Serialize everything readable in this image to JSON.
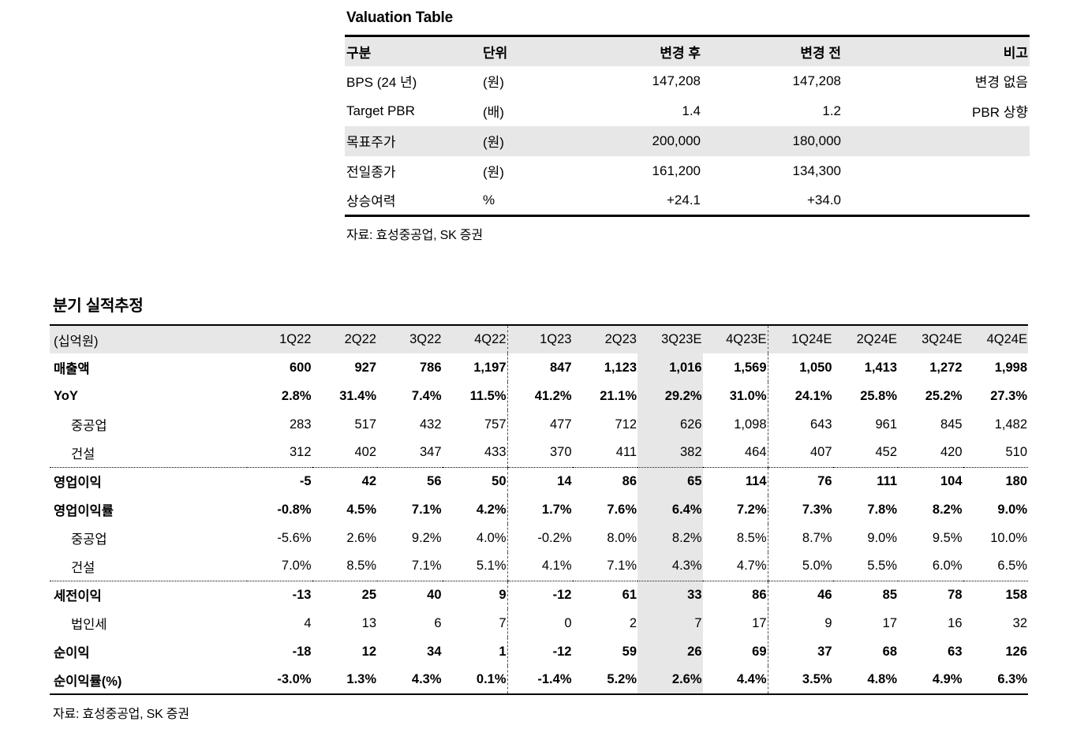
{
  "valuation_table": {
    "title": "Valuation Table",
    "headers": [
      "구분",
      "단위",
      "변경 후",
      "변경 전",
      "비고"
    ],
    "rows": [
      {
        "label": "BPS (24 년)",
        "unit": "(원)",
        "after": "147,208",
        "before": "147,208",
        "note": "변경 없음",
        "highlight": false
      },
      {
        "label": "Target PBR",
        "unit": "(배)",
        "after": "1.4",
        "before": "1.2",
        "note": "PBR 상향",
        "highlight": false
      },
      {
        "label": "목표주가",
        "unit": "(원)",
        "after": "200,000",
        "before": "180,000",
        "note": "",
        "highlight": true
      },
      {
        "label": "전일종가",
        "unit": "(원)",
        "after": "161,200",
        "before": "134,300",
        "note": "",
        "highlight": false
      },
      {
        "label": "상승여력",
        "unit": "%",
        "after": "+24.1",
        "before": "+34.0",
        "note": "",
        "highlight": false
      }
    ],
    "source": "자료: 효성중공업, SK 증권"
  },
  "quarterly_table": {
    "title": "분기 실적추정",
    "unit_label": "(십억원)",
    "columns": [
      "1Q22",
      "2Q22",
      "3Q22",
      "4Q22",
      "1Q23",
      "2Q23",
      "3Q23E",
      "4Q23E",
      "1Q24E",
      "2Q24E",
      "3Q24E",
      "4Q24E"
    ],
    "highlight_column": "3Q23E",
    "rows": [
      {
        "label": "매출액",
        "bold": true,
        "indent": false,
        "divider_top": false,
        "values": [
          "600",
          "927",
          "786",
          "1,197",
          "847",
          "1,123",
          "1,016",
          "1,569",
          "1,050",
          "1,413",
          "1,272",
          "1,998"
        ]
      },
      {
        "label": "YoY",
        "bold": true,
        "indent": false,
        "divider_top": false,
        "values": [
          "2.8%",
          "31.4%",
          "7.4%",
          "11.5%",
          "41.2%",
          "21.1%",
          "29.2%",
          "31.0%",
          "24.1%",
          "25.8%",
          "25.2%",
          "27.3%"
        ]
      },
      {
        "label": "중공업",
        "bold": false,
        "indent": true,
        "divider_top": false,
        "values": [
          "283",
          "517",
          "432",
          "757",
          "477",
          "712",
          "626",
          "1,098",
          "643",
          "961",
          "845",
          "1,482"
        ]
      },
      {
        "label": "건설",
        "bold": false,
        "indent": true,
        "divider_top": false,
        "values": [
          "312",
          "402",
          "347",
          "433",
          "370",
          "411",
          "382",
          "464",
          "407",
          "452",
          "420",
          "510"
        ]
      },
      {
        "label": "영업이익",
        "bold": true,
        "indent": false,
        "divider_top": true,
        "values": [
          "-5",
          "42",
          "56",
          "50",
          "14",
          "86",
          "65",
          "114",
          "76",
          "111",
          "104",
          "180"
        ]
      },
      {
        "label": "영업이익률",
        "bold": true,
        "indent": false,
        "divider_top": false,
        "values": [
          "-0.8%",
          "4.5%",
          "7.1%",
          "4.2%",
          "1.7%",
          "7.6%",
          "6.4%",
          "7.2%",
          "7.3%",
          "7.8%",
          "8.2%",
          "9.0%"
        ]
      },
      {
        "label": "중공업",
        "bold": false,
        "indent": true,
        "divider_top": false,
        "values": [
          "-5.6%",
          "2.6%",
          "9.2%",
          "4.0%",
          "-0.2%",
          "8.0%",
          "8.2%",
          "8.5%",
          "8.7%",
          "9.0%",
          "9.5%",
          "10.0%"
        ]
      },
      {
        "label": "건설",
        "bold": false,
        "indent": true,
        "divider_top": false,
        "values": [
          "7.0%",
          "8.5%",
          "7.1%",
          "5.1%",
          "4.1%",
          "7.1%",
          "4.3%",
          "4.7%",
          "5.0%",
          "5.5%",
          "6.0%",
          "6.5%"
        ]
      },
      {
        "label": "세전이익",
        "bold": true,
        "indent": false,
        "divider_top": true,
        "values": [
          "-13",
          "25",
          "40",
          "9",
          "-12",
          "61",
          "33",
          "86",
          "46",
          "85",
          "78",
          "158"
        ]
      },
      {
        "label": "법인세",
        "bold": false,
        "indent": true,
        "divider_top": false,
        "values": [
          "4",
          "13",
          "6",
          "7",
          "0",
          "2",
          "7",
          "17",
          "9",
          "17",
          "16",
          "32"
        ]
      },
      {
        "label": "순이익",
        "bold": true,
        "indent": false,
        "divider_top": false,
        "values": [
          "-18",
          "12",
          "34",
          "1",
          "-12",
          "59",
          "26",
          "69",
          "37",
          "68",
          "63",
          "126"
        ]
      },
      {
        "label": "순이익률(%)",
        "bold": true,
        "indent": false,
        "divider_top": false,
        "values": [
          "-3.0%",
          "1.3%",
          "4.3%",
          "0.1%",
          "-1.4%",
          "5.2%",
          "2.6%",
          "4.4%",
          "3.5%",
          "4.8%",
          "4.9%",
          "6.3%"
        ]
      }
    ],
    "source": "자료: 효성중공업, SK 증권",
    "colors": {
      "highlight_bg": "#e7e7e7",
      "border": "#000000"
    }
  }
}
